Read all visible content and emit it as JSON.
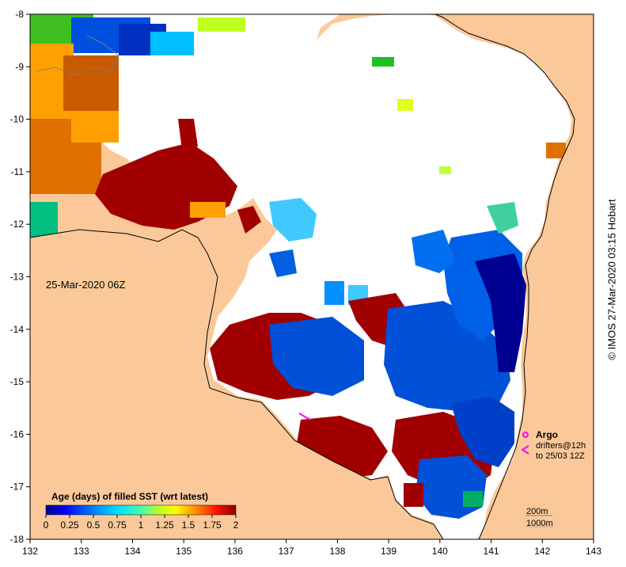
{
  "map": {
    "date_label": "25-Mar-2020 06Z",
    "x_ticks": [
      "132",
      "133",
      "134",
      "135",
      "136",
      "137",
      "138",
      "139",
      "140",
      "141",
      "142",
      "143"
    ],
    "y_ticks": [
      "-8",
      "-9",
      "-10",
      "-11",
      "-12",
      "-13",
      "-14",
      "-15",
      "-16",
      "-17",
      "-18"
    ],
    "lon_range": [
      132,
      143
    ],
    "lat_range": [
      -18,
      -8
    ],
    "land_color": "#fbc999",
    "colorbar": {
      "title": "Age (days) of filled SST (wrt latest)",
      "ticks": [
        "0",
        "0.25",
        "0.5",
        "0.75",
        "1",
        "1.25",
        "1.5",
        "1.75",
        "2"
      ],
      "colors": [
        "#00008c",
        "#0000ff",
        "#0080ff",
        "#00e0ff",
        "#40ffb0",
        "#a0ff40",
        "#ffff00",
        "#ff8000",
        "#ff2000",
        "#8c0000"
      ]
    },
    "legend": {
      "argo": "Argo",
      "drifters_line1": "drifters@12h",
      "drifters_line2": "to 25/03 12Z",
      "contour_200": "200m",
      "contour_1000": "1000m"
    },
    "credit": "© IMOS 27-Mar-2020 03:15 Hobart"
  }
}
